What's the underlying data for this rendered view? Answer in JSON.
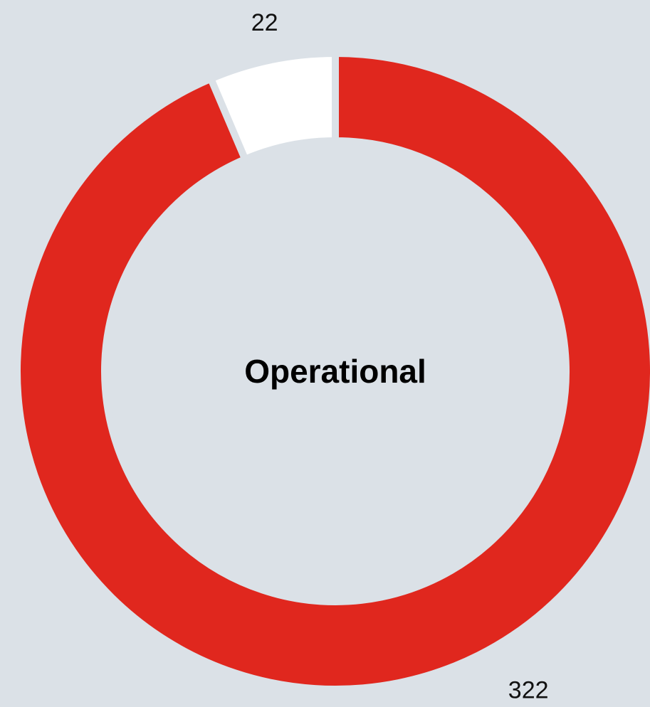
{
  "chart_data": {
    "type": "donut",
    "center_label": "Operational",
    "values": [
      322,
      22
    ],
    "colors": [
      "#e0271e",
      "#ffffff"
    ]
  }
}
